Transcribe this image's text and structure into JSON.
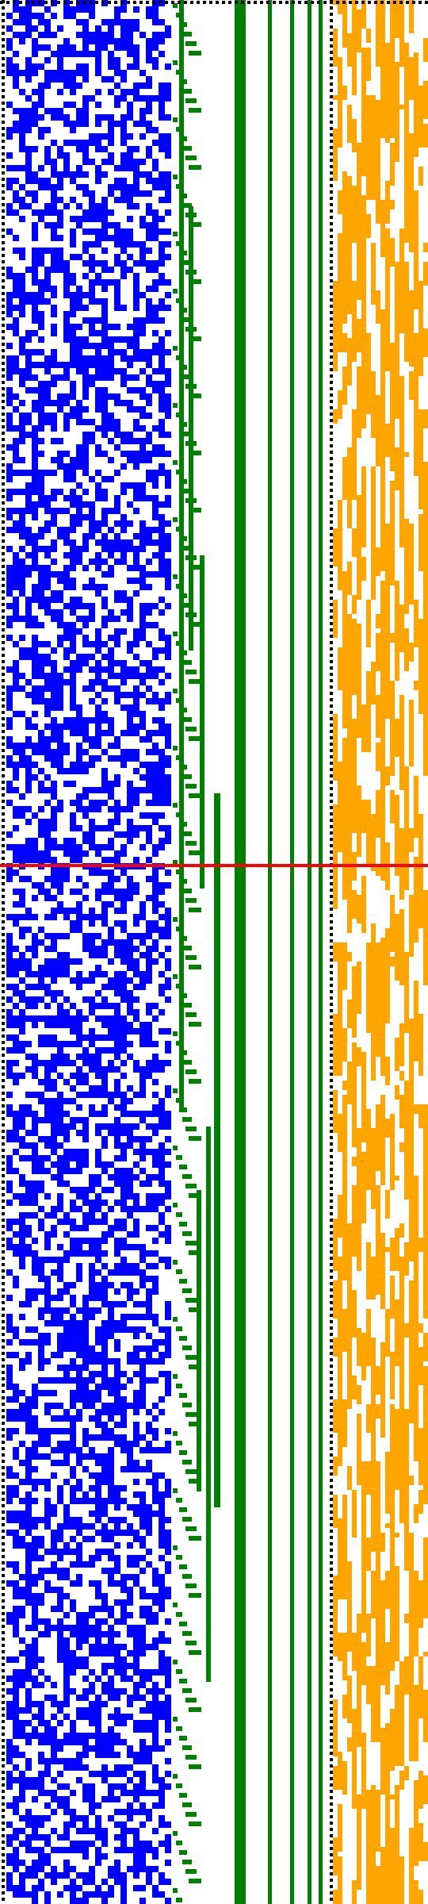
{
  "colors": {
    "blue": "#0000FF",
    "green": "#008000",
    "orange": "#FFA500",
    "red": "#FF0000",
    "border": "#000000",
    "background": "#FFFFFF"
  },
  "grid": {
    "rows": 240,
    "blue_cols": 26,
    "orange_cols": 14,
    "blue_density": 0.54,
    "orange_density": 0.62
  },
  "green_bars": {
    "solid_columns": [
      24,
      33,
      36,
      39,
      41
    ],
    "solid_column_widths": [
      3,
      1,
      1,
      1,
      1
    ]
  },
  "red_line": {
    "row": 109
  }
}
